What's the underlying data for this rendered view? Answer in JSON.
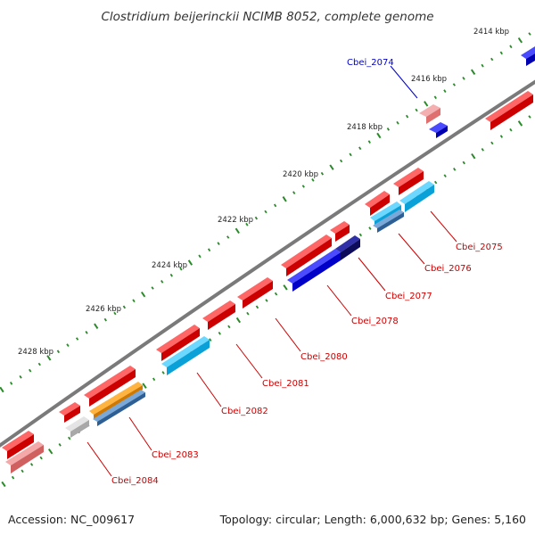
{
  "title": "Clostridium beijerinckii NCIMB 8052, complete genome",
  "footer": {
    "accession": "Accession: NC_009617",
    "info": "Topology: circular; Length: 6,000,632 bp; Genes: 5,160"
  },
  "colors": {
    "backbone": "#7a7a7a",
    "tick": "#2a8a2a",
    "label_red": "#cc0000",
    "label_blue": "#0000cc",
    "gene_red": "#ee0000",
    "gene_pink": "#e88080",
    "gene_blue": "#0a0ae6",
    "gene_navy": "#14147a",
    "gene_cyan": "#1ab8f0",
    "gene_steel": "#4a7fb8",
    "gene_orange": "#f0960a",
    "gene_grey": "#c4c4c4"
  },
  "kbp_labels": [
    {
      "kbp": 2414,
      "text": "2414 kbp"
    },
    {
      "kbp": 2416,
      "text": "2416 kbp"
    },
    {
      "kbp": 2418,
      "text": "2418 kbp"
    },
    {
      "kbp": 2420,
      "text": "2420 kbp"
    },
    {
      "kbp": 2422,
      "text": "2422 kbp"
    },
    {
      "kbp": 2424,
      "text": "2424 kbp"
    },
    {
      "kbp": 2426,
      "text": "2426 kbp"
    },
    {
      "kbp": 2428,
      "text": "2428 kbp"
    }
  ],
  "gene_labels": [
    {
      "name": "Cbei_2074",
      "color": "blue"
    },
    {
      "name": "Cbei_2075",
      "color": "red"
    },
    {
      "name": "Cbei_2076",
      "color": "red"
    },
    {
      "name": "Cbei_2077",
      "color": "red"
    },
    {
      "name": "Cbei_2078",
      "color": "red"
    },
    {
      "name": "Cbei_2080",
      "color": "red"
    },
    {
      "name": "Cbei_2081",
      "color": "red"
    },
    {
      "name": "Cbei_2082",
      "color": "red"
    },
    {
      "name": "Cbei_2083",
      "color": "red"
    },
    {
      "name": "Cbei_2084",
      "color": "red"
    }
  ]
}
